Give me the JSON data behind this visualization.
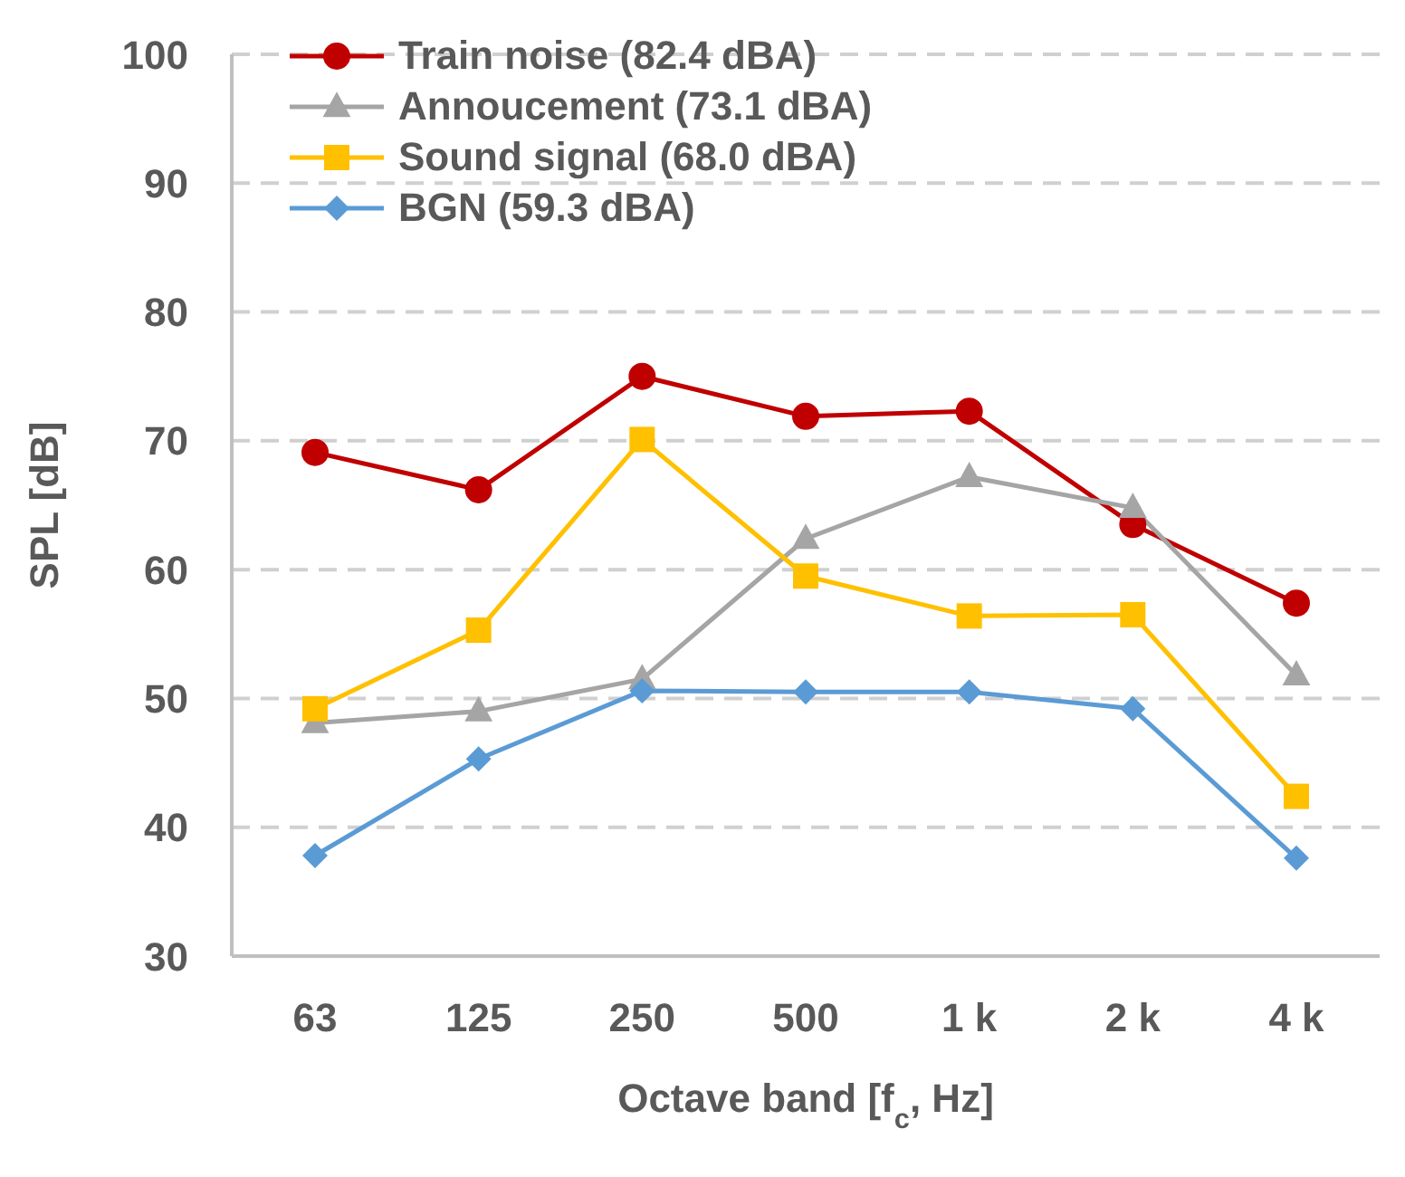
{
  "chart_data": {
    "type": "line",
    "xlabel": "Octave band [f$_{c}$, Hz]",
    "ylabel": "SPL [dB]",
    "categories": [
      "63",
      "125",
      "250",
      "500",
      "1 k",
      "2 k",
      "4 k"
    ],
    "series": [
      {
        "name": "Train noise (82.4 dBA)",
        "color": "#c00000",
        "marker": "circle",
        "values": [
          69.1,
          66.2,
          75.0,
          71.9,
          72.3,
          63.5,
          57.4
        ]
      },
      {
        "name": "Annoucement (73.1 dBA)",
        "color": "#a5a5a5",
        "marker": "triangle",
        "values": [
          48.1,
          49.0,
          51.5,
          62.4,
          67.2,
          64.8,
          51.8
        ]
      },
      {
        "name": "Sound signal (68.0 dBA)",
        "color": "#ffc000",
        "marker": "square",
        "values": [
          49.2,
          55.3,
          70.1,
          59.5,
          56.4,
          56.5,
          42.4
        ]
      },
      {
        "name": "BGN (59.3 dBA)",
        "color": "#5b9bd5",
        "marker": "diamond",
        "values": [
          37.8,
          45.3,
          50.6,
          50.5,
          50.5,
          49.2,
          37.6
        ]
      }
    ],
    "ylim": [
      30,
      100
    ],
    "yticks": [
      30,
      40,
      50,
      60,
      70,
      80,
      90,
      100
    ],
    "grid": "y",
    "legend": "top left",
    "line_style": "solid"
  }
}
